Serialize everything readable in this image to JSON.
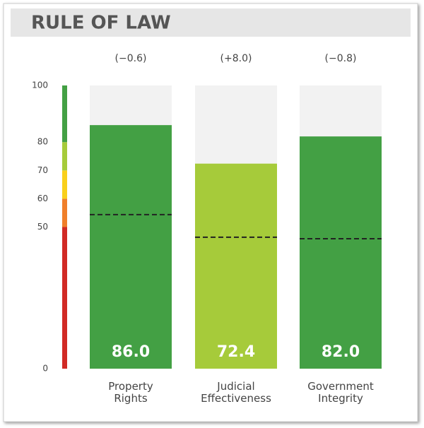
{
  "chart_data": {
    "type": "bar",
    "title": "RULE OF LAW",
    "categories": [
      "Property Rights",
      "Judicial Effectiveness",
      "Government Integrity"
    ],
    "values": [
      86.0,
      72.4,
      82.0
    ],
    "value_labels": [
      "86.0",
      "72.4",
      "82.0"
    ],
    "colors": [
      "#43a044",
      "#a6cb3a",
      "#43a044"
    ],
    "changes": [
      -0.6,
      8.0,
      -0.8
    ],
    "change_labels": [
      "(−0.6)",
      "(+8.0)",
      "(−0.8)"
    ],
    "dashed_values": [
      54.4,
      46.4,
      45.9
    ],
    "ylim": [
      0,
      100
    ],
    "yticks": [
      0,
      50,
      60,
      70,
      80,
      100
    ],
    "scale_bands": [
      {
        "from": 0,
        "to": 50,
        "color": "#d12a25"
      },
      {
        "from": 50,
        "to": 60,
        "color": "#f07f2a"
      },
      {
        "from": 60,
        "to": 70,
        "color": "#f9d01b"
      },
      {
        "from": 70,
        "to": 80,
        "color": "#a6cb3a"
      },
      {
        "from": 80,
        "to": 100,
        "color": "#43a044"
      }
    ]
  }
}
